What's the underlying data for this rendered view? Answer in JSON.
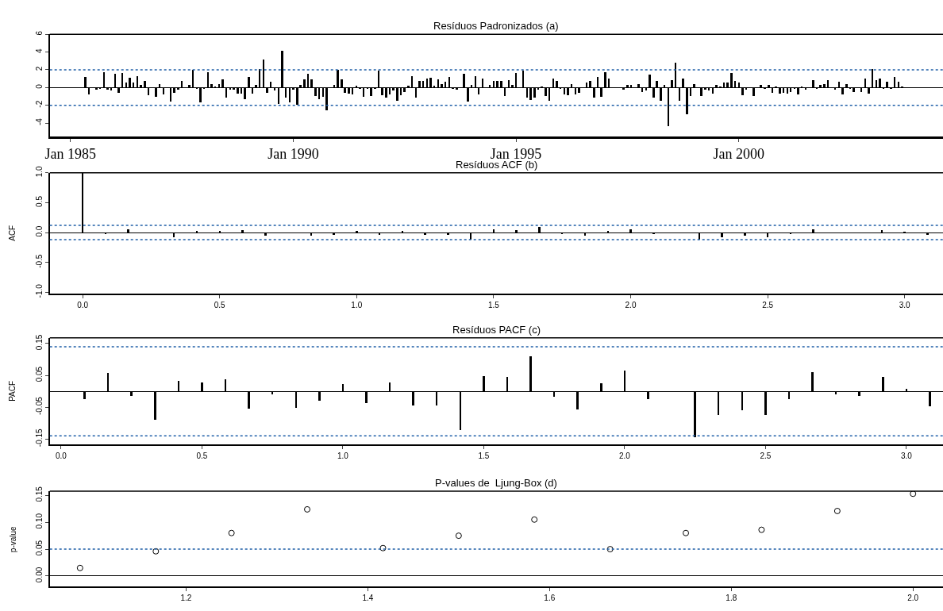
{
  "chart_data": [
    {
      "type": "bar",
      "title": "Resíduos Padronizados (a)",
      "color": "#000000",
      "x": [
        "1985-05",
        "1985-06",
        "1985-07",
        "1985-08",
        "1985-09",
        "1985-10",
        "1985-11",
        "1985-12",
        "1986-01",
        "1986-02",
        "1986-03",
        "1986-04",
        "1986-05",
        "1986-06",
        "1986-07",
        "1986-08",
        "1986-09",
        "1986-10",
        "1986-11",
        "1986-12",
        "1987-01",
        "1987-02",
        "1987-03",
        "1987-04",
        "1987-05",
        "1987-06",
        "1987-07",
        "1987-08",
        "1987-09",
        "1987-10",
        "1987-11",
        "1987-12",
        "1988-01",
        "1988-02",
        "1988-03",
        "1988-04",
        "1988-05",
        "1988-06",
        "1988-07",
        "1988-08",
        "1988-09",
        "1988-10",
        "1988-11",
        "1988-12",
        "1989-01",
        "1989-02",
        "1989-03",
        "1989-04",
        "1989-05",
        "1989-06",
        "1989-07",
        "1989-08",
        "1989-09",
        "1989-10",
        "1989-11",
        "1989-12",
        "1990-01",
        "1990-02",
        "1990-03",
        "1990-04",
        "1990-05",
        "1990-06",
        "1990-07",
        "1990-08",
        "1990-09",
        "1990-10",
        "1990-11",
        "1990-12",
        "1991-01",
        "1991-02",
        "1991-03",
        "1991-04",
        "1991-05",
        "1991-06",
        "1991-07",
        "1991-08",
        "1991-09",
        "1991-10",
        "1991-11",
        "1991-12",
        "1992-01",
        "1992-02",
        "1992-03",
        "1992-04",
        "1992-05",
        "1992-06",
        "1992-07",
        "1992-08",
        "1992-09",
        "1992-10",
        "1992-11",
        "1992-12",
        "1993-01",
        "1993-02",
        "1993-03",
        "1993-04",
        "1993-05",
        "1993-06",
        "1993-07",
        "1993-08",
        "1993-09",
        "1993-10",
        "1993-11",
        "1993-12",
        "1994-01",
        "1994-02",
        "1994-03",
        "1994-04",
        "1994-05",
        "1994-06",
        "1994-07",
        "1994-08",
        "1994-09",
        "1994-10",
        "1994-11",
        "1994-12",
        "1995-01",
        "1995-02",
        "1995-03",
        "1995-04",
        "1995-05",
        "1995-06",
        "1995-07",
        "1995-08",
        "1995-09",
        "1995-10",
        "1995-11",
        "1995-12",
        "1996-01",
        "1996-02",
        "1996-03",
        "1996-04",
        "1996-05",
        "1996-06",
        "1996-07",
        "1996-08",
        "1996-09",
        "1996-10",
        "1996-11",
        "1996-12",
        "1997-01",
        "1997-02",
        "1997-03",
        "1997-04",
        "1997-05",
        "1997-06",
        "1997-07",
        "1997-08",
        "1997-09",
        "1997-10",
        "1997-11",
        "1997-12",
        "1998-01",
        "1998-02",
        "1998-03",
        "1998-04",
        "1998-05",
        "1998-06",
        "1998-07",
        "1998-08",
        "1998-09",
        "1998-10",
        "1998-11",
        "1998-12",
        "1999-01",
        "1999-02",
        "1999-03",
        "1999-04",
        "1999-05",
        "1999-06",
        "1999-07",
        "1999-08",
        "1999-09",
        "1999-10",
        "1999-11",
        "1999-12",
        "2000-01",
        "2000-02",
        "2000-03",
        "2000-04",
        "2000-05",
        "2000-06",
        "2000-07",
        "2000-08",
        "2000-09",
        "2000-10",
        "2000-11",
        "2000-12",
        "2001-01",
        "2001-02",
        "2001-03",
        "2001-04",
        "2001-05",
        "2001-06",
        "2001-07",
        "2001-08",
        "2001-09",
        "2001-10",
        "2001-11",
        "2001-12",
        "2002-01",
        "2002-02",
        "2002-03",
        "2002-04",
        "2002-05",
        "2002-06",
        "2002-07",
        "2002-08",
        "2002-09",
        "2002-10",
        "2002-11",
        "2002-12",
        "2003-01",
        "2003-02",
        "2003-03",
        "2003-04",
        "2003-05",
        "2003-06",
        "2003-07",
        "2003-08",
        "2003-09",
        "2003-10"
      ],
      "values": [
        1.2,
        -0.8,
        0,
        -0.3,
        -0.2,
        1.7,
        -0.3,
        -0.4,
        1.5,
        -0.6,
        1.6,
        0.5,
        1.1,
        0.5,
        1.3,
        0.3,
        0.7,
        -0.9,
        0,
        -1.1,
        0.4,
        -0.8,
        0,
        -1.6,
        -0.6,
        -0.3,
        0.7,
        0,
        0.3,
        2.0,
        -0.2,
        -1.7,
        -0.1,
        1.7,
        0.4,
        0.1,
        0.4,
        0.9,
        -1.2,
        -0.3,
        -0.3,
        -0.7,
        -0.7,
        -1.3,
        1.2,
        -0.7,
        0.3,
        2.1,
        3.1,
        -0.6,
        0.6,
        -0.4,
        -1.9,
        4.1,
        -1.2,
        -1.7,
        -0.3,
        -2.0,
        0.3,
        0.9,
        1.5,
        0.9,
        -1.0,
        -1.3,
        -1.1,
        -2.6,
        0,
        0.3,
        2.0,
        0.9,
        -0.6,
        -0.7,
        -0.8,
        0.2,
        -0.2,
        -1.1,
        -0.1,
        -1.0,
        -0.1,
        1.9,
        -0.9,
        -1.2,
        -0.8,
        -0.4,
        -1.5,
        -0.9,
        -0.5,
        0.2,
        1.3,
        -1.2,
        0.7,
        0.7,
        1.0,
        1.1,
        0.2,
        0.9,
        0.4,
        0.6,
        1.2,
        -0.2,
        -0.3,
        0,
        1.5,
        -1.6,
        0.3,
        1.3,
        -0.8,
        1.0,
        0,
        0.3,
        0.7,
        0.7,
        0.7,
        -1.0,
        0.8,
        0.3,
        1.6,
        0,
        1.9,
        -1.2,
        -1.4,
        -1.2,
        -0.3,
        0.1,
        -1.0,
        -1.5,
        1.0,
        0.7,
        -0.1,
        -0.8,
        -0.9,
        0.4,
        -0.8,
        -0.6,
        0,
        0.5,
        0.7,
        -1.2,
        1.2,
        -1.1,
        1.7,
        1.0,
        0,
        0,
        0,
        -0.3,
        0.3,
        0.3,
        0,
        0.4,
        -0.5,
        -0.4,
        1.4,
        -1.2,
        0.7,
        -1.5,
        0.3,
        -4.4,
        0.8,
        2.8,
        -1.5,
        1.0,
        -3.0,
        -1.0,
        0.4,
        0,
        -1.0,
        -0.3,
        -0.4,
        -0.7,
        0.3,
        0.1,
        0.5,
        0.5,
        1.6,
        0.7,
        0.5,
        -0.9,
        -0.3,
        0,
        -1.0,
        0,
        0.3,
        -0.2,
        0.3,
        -0.6,
        0.1,
        -0.7,
        -0.6,
        -0.7,
        -0.5,
        -0.2,
        -0.8,
        0.1,
        -0.3,
        0,
        0.8,
        -0.1,
        0.3,
        0.4,
        0.8,
        0,
        -0.3,
        0.6,
        -0.8,
        0.4,
        -0.2,
        -0.5,
        0,
        -0.5,
        1.0,
        -0.7,
        2.1,
        0.8,
        1.0,
        -0.2,
        0.6,
        -0.1,
        1.2,
        0.6,
        0.1,
        0
      ],
      "xlim": [
        "1984-07-15",
        "2004-08-01"
      ],
      "xticks": [
        {
          "value": "1985-01",
          "label": "Jan 1985"
        },
        {
          "value": "1990-01",
          "label": "Jan 1990"
        },
        {
          "value": "1995-01",
          "label": "Jan 1995"
        },
        {
          "value": "2000-01",
          "label": "Jan 2000"
        }
      ],
      "ylim": [
        -5.5,
        6
      ],
      "yticks": [
        -4,
        -2,
        0,
        2,
        4,
        6
      ],
      "ref_lines": [
        {
          "axis": "y",
          "value": 2,
          "color": "#1f5fa8",
          "line_style": "dotted"
        },
        {
          "axis": "y",
          "value": -2,
          "color": "#1f5fa8",
          "line_style": "dotted"
        }
      ]
    },
    {
      "type": "bar",
      "title": "Resíduos ACF (b)",
      "ylabel": "ACF",
      "color": "#000000",
      "x": [
        0,
        0.0833,
        0.1667,
        0.25,
        0.3333,
        0.4167,
        0.5,
        0.5833,
        0.6667,
        0.75,
        0.8333,
        0.9167,
        1.0,
        1.0833,
        1.1667,
        1.25,
        1.3333,
        1.4167,
        1.5,
        1.5833,
        1.6667,
        1.75,
        1.8333,
        1.9167,
        2.0,
        2.0833,
        2.1667,
        2.25,
        2.3333,
        2.4167,
        2.5,
        2.5833,
        2.6667,
        2.75,
        2.8333,
        2.9167,
        3.0,
        3.0833
      ],
      "values": [
        1.0,
        -0.02,
        0.05,
        -0.01,
        -0.08,
        0.03,
        0.03,
        0.04,
        -0.05,
        -0.01,
        -0.05,
        -0.03,
        0.03,
        -0.03,
        0.03,
        -0.04,
        -0.04,
        -0.11,
        0.05,
        0.04,
        0.1,
        -0.02,
        -0.05,
        0.03,
        0.06,
        -0.02,
        0,
        -0.12,
        -0.07,
        -0.05,
        -0.07,
        -0.02,
        0.05,
        -0.01,
        -0.01,
        0.04,
        0.01,
        -0.04
      ],
      "xlim": [
        -0.12,
        3.14
      ],
      "xticks": [
        {
          "value": 0,
          "label": "0.0"
        },
        0.5,
        {
          "value": 1,
          "label": "1.0"
        },
        1.5,
        {
          "value": 2,
          "label": "2.0"
        },
        2.5,
        {
          "value": 3,
          "label": "3.0"
        }
      ],
      "ylim": [
        -1.02,
        1.0
      ],
      "yticks": [
        {
          "value": -1,
          "label": "-1.0"
        },
        -0.5,
        {
          "value": 0,
          "label": "0.0"
        },
        0.5,
        {
          "value": 1,
          "label": "1.0"
        }
      ],
      "ref_lines": [
        {
          "axis": "y",
          "value": 0.12,
          "color": "#1f5fa8",
          "line_style": "dotted"
        },
        {
          "axis": "y",
          "value": -0.12,
          "color": "#1f5fa8",
          "line_style": "dotted"
        }
      ]
    },
    {
      "type": "bar",
      "title": "Resíduos PACF (c)",
      "ylabel": "PACF",
      "color": "#000000",
      "x": [
        0.0833,
        0.1667,
        0.25,
        0.3333,
        0.4167,
        0.5,
        0.5833,
        0.6667,
        0.75,
        0.8333,
        0.9167,
        1.0,
        1.0833,
        1.1667,
        1.25,
        1.3333,
        1.4167,
        1.5,
        1.5833,
        1.6667,
        1.75,
        1.8333,
        1.9167,
        2.0,
        2.0833,
        2.1667,
        2.25,
        2.3333,
        2.4167,
        2.5,
        2.5833,
        2.6667,
        2.75,
        2.8333,
        2.9167,
        3.0,
        3.0833
      ],
      "values": [
        -0.025,
        0.058,
        -0.015,
        -0.089,
        0.034,
        0.028,
        0.038,
        -0.055,
        -0.009,
        -0.051,
        -0.03,
        0.023,
        -0.036,
        0.028,
        -0.043,
        -0.045,
        -0.121,
        0.049,
        0.045,
        0.111,
        -0.017,
        -0.057,
        0.025,
        0.066,
        -0.023,
        0,
        -0.143,
        -0.074,
        -0.058,
        -0.074,
        -0.023,
        0.062,
        -0.009,
        -0.013,
        0.045,
        0.008,
        -0.047
      ],
      "xlim": [
        -0.04,
        3.13
      ],
      "xticks": [
        {
          "value": 0,
          "label": "0.0"
        },
        0.5,
        {
          "value": 1,
          "label": "1.0"
        },
        1.5,
        {
          "value": 2,
          "label": "2.0"
        },
        2.5,
        {
          "value": 3,
          "label": "3.0"
        }
      ],
      "ylim": [
        -0.167,
        0.168
      ],
      "yticks": [
        -0.15,
        -0.05,
        0.05,
        0.15
      ],
      "ref_lines": [
        {
          "axis": "y",
          "value": 0.14,
          "color": "#1f5fa8",
          "line_style": "dotted"
        },
        {
          "axis": "y",
          "value": -0.14,
          "color": "#1f5fa8",
          "line_style": "dotted"
        }
      ]
    },
    {
      "type": "scatter",
      "title": "P-values de  Ljung-Box (d)",
      "ylabel": "p-value",
      "color": "#000000",
      "marker": "circle",
      "x": [
        1.0833,
        1.1667,
        1.25,
        1.3333,
        1.4167,
        1.5,
        1.5833,
        1.6667,
        1.75,
        1.8333,
        1.9167,
        2.0
      ],
      "values": [
        0.015,
        0.046,
        0.08,
        0.124,
        0.052,
        0.075,
        0.105,
        0.05,
        0.08,
        0.086,
        0.121,
        0.153
      ],
      "xlim": [
        1.05,
        2.033
      ],
      "xticks": [
        1.2,
        1.4,
        1.6,
        1.8,
        {
          "value": 2,
          "label": "2.0"
        }
      ],
      "ylim": [
        -0.02,
        0.158
      ],
      "yticks": [
        {
          "value": 0,
          "label": "0.00"
        },
        0.05,
        {
          "value": 0.1,
          "label": "0.10"
        },
        0.15
      ],
      "ref_lines": [
        {
          "axis": "y",
          "value": 0.05,
          "color": "#1f5fa8",
          "line_style": "dotted"
        }
      ]
    }
  ]
}
